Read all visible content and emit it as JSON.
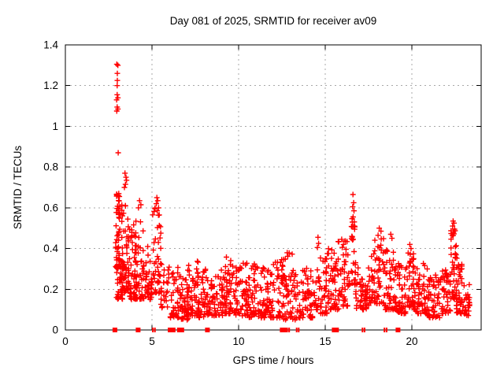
{
  "chart_data": {
    "type": "scatter",
    "title": "Day 081 of 2025, SRMTID for receiver av09",
    "xlabel": "GPS time / hours",
    "ylabel": "SRMTID / TECUs",
    "xlim": [
      0,
      24
    ],
    "ylim": [
      0,
      1.4
    ],
    "xticks": [
      0,
      5,
      10,
      15,
      20
    ],
    "xtick_labels": [
      "0",
      "5",
      "10",
      "15",
      "20"
    ],
    "yticks": [
      0,
      0.2,
      0.4,
      0.6,
      0.8,
      1.0,
      1.2,
      1.4
    ],
    "ytick_labels": [
      "0",
      "0.2",
      "0.4",
      "0.6",
      "0.8",
      "1",
      "1.2",
      "1.4"
    ],
    "grid": true,
    "legend": "none",
    "marker": {
      "glyph": "plus",
      "color": "#ff0000",
      "size": 7
    },
    "grid_color": "#a8a8a8",
    "axis_color": "#000000",
    "series_name": "SRMTID",
    "outlier_points": [
      [
        2.97,
        1.305
      ],
      [
        3.03,
        1.3
      ],
      [
        3.0,
        1.26
      ],
      [
        3.0,
        1.225
      ],
      [
        2.99,
        1.2
      ],
      [
        2.99,
        1.155
      ],
      [
        3.03,
        1.14
      ],
      [
        2.96,
        1.13
      ],
      [
        2.99,
        1.095
      ],
      [
        3.03,
        1.085
      ],
      [
        2.97,
        1.075
      ],
      [
        3.05,
        0.87
      ],
      [
        3.44,
        0.77
      ],
      [
        3.5,
        0.75
      ],
      [
        3.53,
        0.735
      ],
      [
        3.47,
        0.715
      ],
      [
        3.41,
        0.7
      ],
      [
        3.08,
        0.67
      ],
      [
        3.12,
        0.655
      ],
      [
        4.28,
        0.635
      ],
      [
        4.36,
        0.615
      ],
      [
        4.22,
        0.6
      ],
      [
        5.28,
        0.65
      ],
      [
        5.33,
        0.635
      ],
      [
        5.25,
        0.62
      ],
      [
        5.38,
        0.6
      ],
      [
        5.3,
        0.585
      ],
      [
        5.42,
        0.565
      ],
      [
        14.58,
        0.455
      ],
      [
        14.62,
        0.425
      ],
      [
        14.55,
        0.405
      ],
      [
        15.95,
        0.445
      ],
      [
        16.05,
        0.42
      ],
      [
        16.6,
        0.665
      ],
      [
        16.64,
        0.625
      ],
      [
        16.58,
        0.605
      ],
      [
        16.66,
        0.585
      ],
      [
        16.61,
        0.555
      ],
      [
        16.57,
        0.53
      ],
      [
        16.68,
        0.51
      ],
      [
        18.12,
        0.5
      ],
      [
        18.22,
        0.485
      ],
      [
        18.05,
        0.465
      ],
      [
        18.78,
        0.47
      ],
      [
        18.85,
        0.45
      ],
      [
        19.88,
        0.42
      ],
      [
        19.95,
        0.4
      ],
      [
        22.38,
        0.535
      ],
      [
        22.43,
        0.525
      ],
      [
        22.35,
        0.51
      ],
      [
        22.46,
        0.495
      ],
      [
        22.4,
        0.48
      ],
      [
        22.33,
        0.465
      ]
    ],
    "cluster_segments": [
      {
        "x0": 2.9,
        "x1": 3.15,
        "y0": 0.3,
        "y1": 0.68,
        "n": 45,
        "bias": 1.2
      },
      {
        "x0": 2.95,
        "x1": 3.3,
        "y0": 0.15,
        "y1": 0.35,
        "n": 40,
        "bias": 1.3
      },
      {
        "x0": 3.25,
        "x1": 3.65,
        "y0": 0.18,
        "y1": 0.68,
        "n": 55,
        "bias": 1.6
      },
      {
        "x0": 3.6,
        "x1": 4.1,
        "y0": 0.15,
        "y1": 0.52,
        "n": 50,
        "bias": 1.8
      },
      {
        "x0": 4.0,
        "x1": 4.6,
        "y0": 0.15,
        "y1": 0.55,
        "n": 55,
        "bias": 1.9
      },
      {
        "x0": 4.55,
        "x1": 5.0,
        "y0": 0.15,
        "y1": 0.42,
        "n": 35,
        "bias": 1.8
      },
      {
        "x0": 5.0,
        "x1": 5.55,
        "y0": 0.18,
        "y1": 0.6,
        "n": 45,
        "bias": 1.8
      },
      {
        "x0": 5.5,
        "x1": 6.0,
        "y0": 0.1,
        "y1": 0.35,
        "n": 22,
        "bias": 1.8
      },
      {
        "x0": 6.0,
        "x1": 6.5,
        "y0": 0.06,
        "y1": 0.32,
        "n": 30,
        "bias": 1.5
      },
      {
        "x0": 6.5,
        "x1": 7.1,
        "y0": 0.05,
        "y1": 0.28,
        "n": 45,
        "bias": 1.5
      },
      {
        "x0": 7.0,
        "x1": 7.7,
        "y0": 0.07,
        "y1": 0.34,
        "n": 55,
        "bias": 1.7
      },
      {
        "x0": 7.6,
        "x1": 8.3,
        "y0": 0.06,
        "y1": 0.3,
        "n": 50,
        "bias": 1.7
      },
      {
        "x0": 8.3,
        "x1": 9.2,
        "y0": 0.07,
        "y1": 0.3,
        "n": 65,
        "bias": 1.8
      },
      {
        "x0": 9.2,
        "x1": 9.7,
        "y0": 0.08,
        "y1": 0.38,
        "n": 45,
        "bias": 1.8
      },
      {
        "x0": 9.7,
        "x1": 10.6,
        "y0": 0.07,
        "y1": 0.33,
        "n": 65,
        "bias": 1.8
      },
      {
        "x0": 10.6,
        "x1": 11.5,
        "y0": 0.06,
        "y1": 0.33,
        "n": 65,
        "bias": 1.8
      },
      {
        "x0": 11.5,
        "x1": 12.4,
        "y0": 0.06,
        "y1": 0.35,
        "n": 65,
        "bias": 1.8
      },
      {
        "x0": 12.4,
        "x1": 13.1,
        "y0": 0.05,
        "y1": 0.4,
        "n": 55,
        "bias": 1.8
      },
      {
        "x0": 13.1,
        "x1": 13.7,
        "y0": 0.05,
        "y1": 0.3,
        "n": 28,
        "bias": 1.6
      },
      {
        "x0": 13.7,
        "x1": 14.5,
        "y0": 0.06,
        "y1": 0.32,
        "n": 55,
        "bias": 1.8
      },
      {
        "x0": 14.5,
        "x1": 15.1,
        "y0": 0.08,
        "y1": 0.36,
        "n": 45,
        "bias": 1.7
      },
      {
        "x0": 15.1,
        "x1": 15.7,
        "y0": 0.1,
        "y1": 0.4,
        "n": 45,
        "bias": 1.7
      },
      {
        "x0": 15.7,
        "x1": 16.4,
        "y0": 0.1,
        "y1": 0.44,
        "n": 50,
        "bias": 1.8
      },
      {
        "x0": 16.5,
        "x1": 16.75,
        "y0": 0.22,
        "y1": 0.55,
        "n": 25,
        "bias": 1.3
      },
      {
        "x0": 16.75,
        "x1": 17.6,
        "y0": 0.1,
        "y1": 0.33,
        "n": 55,
        "bias": 1.7
      },
      {
        "x0": 17.6,
        "x1": 18.4,
        "y0": 0.13,
        "y1": 0.45,
        "n": 60,
        "bias": 1.8
      },
      {
        "x0": 18.4,
        "x1": 19.1,
        "y0": 0.1,
        "y1": 0.4,
        "n": 55,
        "bias": 1.8
      },
      {
        "x0": 19.1,
        "x1": 19.7,
        "y0": 0.08,
        "y1": 0.33,
        "n": 45,
        "bias": 1.7
      },
      {
        "x0": 19.7,
        "x1": 20.15,
        "y0": 0.1,
        "y1": 0.38,
        "n": 40,
        "bias": 1.7
      },
      {
        "x0": 20.15,
        "x1": 20.9,
        "y0": 0.08,
        "y1": 0.33,
        "n": 55,
        "bias": 1.8
      },
      {
        "x0": 20.9,
        "x1": 21.7,
        "y0": 0.06,
        "y1": 0.28,
        "n": 55,
        "bias": 1.7
      },
      {
        "x0": 21.7,
        "x1": 22.25,
        "y0": 0.08,
        "y1": 0.3,
        "n": 40,
        "bias": 1.6
      },
      {
        "x0": 22.25,
        "x1": 22.6,
        "y0": 0.15,
        "y1": 0.5,
        "n": 35,
        "bias": 1.4
      },
      {
        "x0": 22.55,
        "x1": 23.0,
        "y0": 0.08,
        "y1": 0.35,
        "n": 40,
        "bias": 1.7
      },
      {
        "x0": 23.0,
        "x1": 23.35,
        "y0": 0.07,
        "y1": 0.25,
        "n": 25,
        "bias": 1.5
      }
    ],
    "zero_flag_squares": [
      {
        "x": 2.86,
        "w": 6
      },
      {
        "x": 4.2,
        "w": 6
      },
      {
        "x": 5.05,
        "w": 2
      },
      {
        "x": 5.17,
        "w": 2
      },
      {
        "x": 6.05,
        "w": 6
      },
      {
        "x": 6.22,
        "w": 6
      },
      {
        "x": 6.58,
        "w": 6
      },
      {
        "x": 6.72,
        "w": 6
      },
      {
        "x": 8.2,
        "w": 6
      },
      {
        "x": 12.52,
        "w": 6
      },
      {
        "x": 12.62,
        "w": 6
      },
      {
        "x": 12.8,
        "w": 2
      },
      {
        "x": 12.92,
        "w": 2
      },
      {
        "x": 13.35,
        "w": 2
      },
      {
        "x": 13.47,
        "w": 2
      },
      {
        "x": 15.52,
        "w": 6
      },
      {
        "x": 15.65,
        "w": 6
      },
      {
        "x": 17.15,
        "w": 2
      },
      {
        "x": 17.27,
        "w": 2
      },
      {
        "x": 18.42,
        "w": 2
      },
      {
        "x": 18.54,
        "w": 2
      },
      {
        "x": 19.2,
        "w": 6
      }
    ]
  }
}
